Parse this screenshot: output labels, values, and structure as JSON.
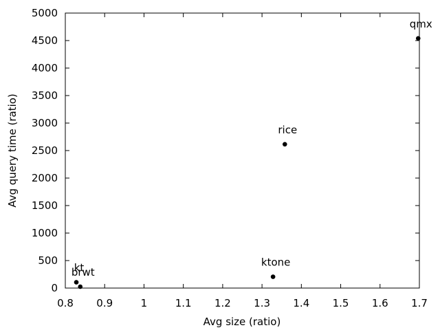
{
  "chart_data": {
    "type": "scatter",
    "xlabel": "Avg size (ratio)",
    "ylabel": "Avg query time (ratio)",
    "xlim": [
      0.8,
      1.7
    ],
    "ylim": [
      0,
      5000
    ],
    "xticks": [
      0.8,
      0.9,
      1,
      1.1,
      1.2,
      1.3,
      1.4,
      1.5,
      1.6,
      1.7
    ],
    "yticks": [
      0,
      500,
      1000,
      1500,
      2000,
      2500,
      3000,
      3500,
      4000,
      4500,
      5000
    ],
    "grid": false,
    "marker_color": "#000000",
    "points": [
      {
        "label": "kt",
        "x": 0.828,
        "y": 105
      },
      {
        "label": "brwt",
        "x": 0.838,
        "y": 25
      },
      {
        "label": "ktone",
        "x": 1.328,
        "y": 205
      },
      {
        "label": "rice",
        "x": 1.358,
        "y": 2615
      },
      {
        "label": "qmx",
        "x": 1.697,
        "y": 4540
      }
    ]
  }
}
